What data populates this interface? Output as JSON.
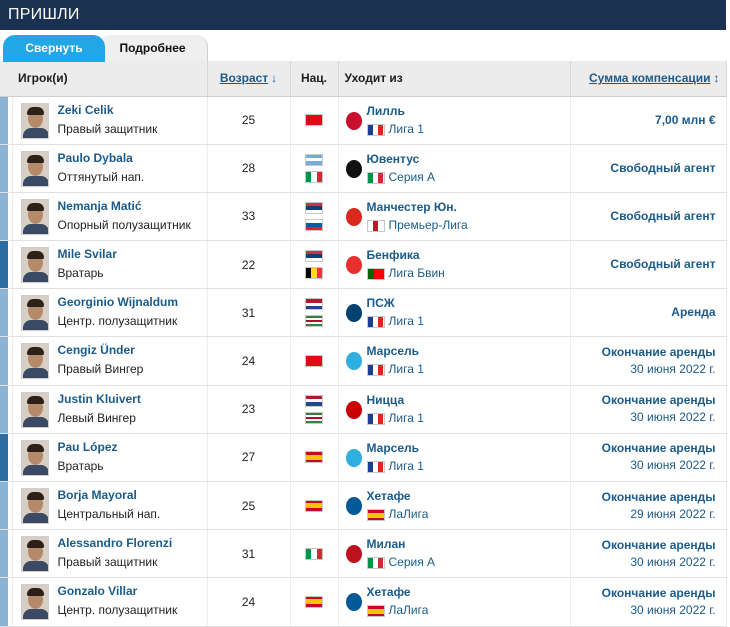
{
  "section_title": "ПРИШЛИ",
  "tabs": {
    "collapse": "Свернуть",
    "details": "Подробнее"
  },
  "columns": {
    "player": "Игрок(и)",
    "age": "Возраст",
    "age_sort_icon": "↓",
    "nat": "Нац.",
    "from": "Уходит из",
    "fee": "Сумма компенсации",
    "fee_sort_icon": "↕"
  },
  "rows": [
    {
      "name": "Zeki Celik",
      "position": "Правый защитник",
      "age": "25",
      "nations": [
        "turkey"
      ],
      "club": "Лилль",
      "club_logo": "lille-logo",
      "league_nation": "france",
      "league": "Лига 1",
      "fee": "7,00 млн €",
      "fee_sub": ""
    },
    {
      "name": "Paulo Dybala",
      "position": "Оттянутый нап.",
      "age": "28",
      "nations": [
        "argentina",
        "italy"
      ],
      "club": "Ювентус",
      "club_logo": "juventus-logo",
      "league_nation": "italy",
      "league": "Серия А",
      "fee": "Свободный агент",
      "fee_sub": ""
    },
    {
      "name": "Nemanja Matić",
      "position": "Опорный полузащитник",
      "age": "33",
      "nations": [
        "serbia",
        "slovenia"
      ],
      "club": "Манчестер Юн.",
      "club_logo": "man-utd-logo",
      "league_nation": "england",
      "league": "Премьер-Лига",
      "fee": "Свободный агент",
      "fee_sub": ""
    },
    {
      "name": "Mile Svilar",
      "position": "Вратарь",
      "age": "22",
      "nations": [
        "serbia",
        "belgium"
      ],
      "club": "Бенфика",
      "club_logo": "benfica-logo",
      "league_nation": "portugal",
      "league": "Лига Бвин",
      "fee": "Свободный агент",
      "fee_sub": ""
    },
    {
      "name": "Georginio Wijnaldum",
      "position": "Центр. полузащитник",
      "age": "31",
      "nations": [
        "netherlands",
        "suriname"
      ],
      "club": "ПСЖ",
      "club_logo": "psg-logo",
      "league_nation": "france",
      "league": "Лига 1",
      "fee": "Аренда",
      "fee_sub": ""
    },
    {
      "name": "Cengiz Ünder",
      "position": "Правый Вингер",
      "age": "24",
      "nations": [
        "turkey"
      ],
      "club": "Марсель",
      "club_logo": "marseille-logo",
      "league_nation": "france",
      "league": "Лига 1",
      "fee": "Окончание аренды",
      "fee_sub": "30 июня 2022 г."
    },
    {
      "name": "Justin Kluivert",
      "position": "Левый Вингер",
      "age": "23",
      "nations": [
        "netherlands",
        "suriname"
      ],
      "club": "Ницца",
      "club_logo": "nice-logo",
      "league_nation": "france",
      "league": "Лига 1",
      "fee": "Окончание аренды",
      "fee_sub": "30 июня 2022 г."
    },
    {
      "name": "Pau López",
      "position": "Вратарь",
      "age": "27",
      "nations": [
        "spain"
      ],
      "club": "Марсель",
      "club_logo": "marseille-logo",
      "league_nation": "france",
      "league": "Лига 1",
      "fee": "Окончание аренды",
      "fee_sub": "30 июня 2022 г."
    },
    {
      "name": "Borja Mayoral",
      "position": "Центральный нап.",
      "age": "25",
      "nations": [
        "spain"
      ],
      "club": "Хетафе",
      "club_logo": "getafe-logo",
      "league_nation": "spain",
      "league": "ЛаЛига",
      "fee": "Окончание аренды",
      "fee_sub": "29 июня 2022 г."
    },
    {
      "name": "Alessandro Florenzi",
      "position": "Правый защитник",
      "age": "31",
      "nations": [
        "italy"
      ],
      "club": "Милан",
      "club_logo": "milan-logo",
      "league_nation": "italy",
      "league": "Серия А",
      "fee": "Окончание аренды",
      "fee_sub": "30 июня 2022 г."
    },
    {
      "name": "Gonzalo Villar",
      "position": "Центр. полузащитник",
      "age": "24",
      "nations": [
        "spain"
      ],
      "club": "Хетафе",
      "club_logo": "getafe-logo",
      "league_nation": "spain",
      "league": "ЛаЛига",
      "fee": "Окончание аренды",
      "fee_sub": "30 июня 2022 г."
    }
  ],
  "colors": {
    "header_bg": "#1a3151",
    "tab_active": "#21a7e8",
    "link": "#1a5b8c",
    "bar_light": "#8cb4d2",
    "bar_dark": "#2b6da0"
  },
  "position_bars": [
    "light",
    "light",
    "light",
    "dark",
    "light",
    "light",
    "light",
    "dark",
    "light",
    "light",
    "light"
  ]
}
